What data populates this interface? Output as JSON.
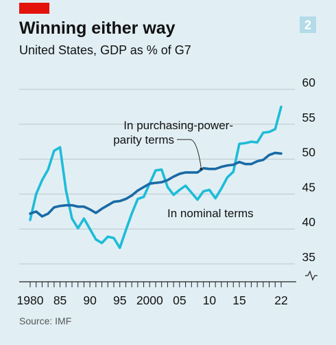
{
  "header": {
    "title": "Winning either way",
    "subtitle": "United States, GDP as % of G7",
    "badge": "2"
  },
  "footer": {
    "source": "Source: IMF"
  },
  "colors": {
    "background": "#e1eff4",
    "brand_red": "#e3120b",
    "nominal": "#1ebcd8",
    "ppp": "#1a6aa5",
    "grid": "#b9c6cc",
    "badge": "#b3dbe8"
  },
  "chart_data": {
    "type": "line",
    "title": "Winning either way",
    "subtitle": "United States, GDP as % of G7",
    "xlabel": "",
    "ylabel": "",
    "xlim": [
      1979.5,
      2022.5
    ],
    "ylim": [
      33,
      60
    ],
    "y_ticks": [
      35,
      40,
      45,
      50,
      55,
      60
    ],
    "x_ticks": [
      {
        "value": 1980,
        "label": "1980"
      },
      {
        "value": 1985,
        "label": "85"
      },
      {
        "value": 1990,
        "label": "90"
      },
      {
        "value": 1995,
        "label": "95"
      },
      {
        "value": 2000,
        "label": "2000"
      },
      {
        "value": 2005,
        "label": "05"
      },
      {
        "value": 2010,
        "label": "10"
      },
      {
        "value": 2015,
        "label": "15"
      },
      {
        "value": 2022,
        "label": "22"
      }
    ],
    "grid": true,
    "axis_break": true,
    "x": [
      1980,
      1981,
      1982,
      1983,
      1984,
      1985,
      1986,
      1987,
      1988,
      1989,
      1990,
      1991,
      1992,
      1993,
      1994,
      1995,
      1996,
      1997,
      1998,
      1999,
      2000,
      2001,
      2002,
      2003,
      2004,
      2005,
      2006,
      2007,
      2008,
      2009,
      2010,
      2011,
      2012,
      2013,
      2014,
      2015,
      2016,
      2017,
      2018,
      2019,
      2020,
      2021,
      2022
    ],
    "series": [
      {
        "name": "In nominal terms",
        "color": "#1ebcd8",
        "values": [
          41.3,
          45.0,
          47.0,
          48.5,
          51.2,
          51.7,
          45.5,
          41.5,
          40.1,
          41.5,
          40.0,
          38.5,
          38.0,
          38.9,
          38.7,
          37.3,
          39.8,
          42.2,
          44.3,
          44.6,
          46.5,
          48.4,
          48.5,
          46.0,
          44.9,
          45.6,
          46.2,
          45.2,
          44.2,
          45.4,
          45.6,
          44.4,
          45.8,
          47.4,
          48.2,
          52.2,
          52.3,
          52.5,
          52.4,
          53.8,
          53.9,
          54.3,
          57.5
        ]
      },
      {
        "name": "In purchasing-power-parity terms",
        "color": "#1a6aa5",
        "values": [
          42.2,
          42.5,
          41.8,
          42.2,
          43.1,
          43.3,
          43.4,
          43.4,
          43.2,
          43.2,
          42.8,
          42.3,
          42.9,
          43.4,
          43.9,
          44.0,
          44.3,
          44.8,
          45.5,
          46.0,
          46.5,
          46.6,
          46.7,
          47.0,
          47.5,
          47.9,
          48.1,
          48.1,
          48.1,
          48.7,
          48.6,
          48.6,
          48.9,
          49.1,
          49.2,
          49.6,
          49.3,
          49.3,
          49.7,
          49.9,
          50.6,
          50.9,
          50.8
        ]
      }
    ],
    "annotations": [
      {
        "series": 1,
        "lines": [
          "In purchasing-power-",
          "parity terms"
        ]
      },
      {
        "series": 0,
        "lines": [
          "In nominal terms"
        ]
      }
    ]
  }
}
